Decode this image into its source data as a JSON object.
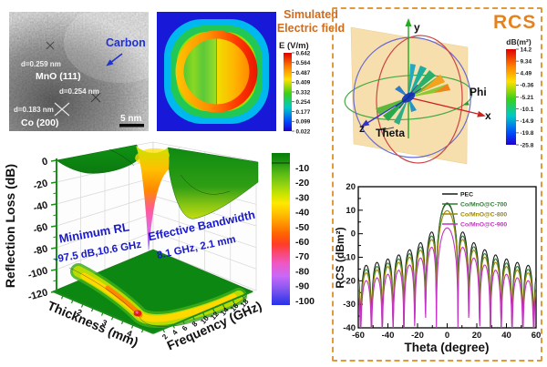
{
  "tem": {
    "carbon_label": "Carbon",
    "d_spacing_1": "d=0.259 nm",
    "phase_1": "MnO (111)",
    "d_spacing_2": "d=0.254 nm",
    "d_spacing_3": "d=0.183 nm",
    "phase_2": "Co (200)",
    "scalebar_label": "5 nm"
  },
  "efield": {
    "title_line1": "Simulated",
    "title_line2": "Electric field",
    "unit": "E (V/m)",
    "colorbar_ticks": [
      "0.642",
      "0.564",
      "0.487",
      "0.409",
      "0.332",
      "0.254",
      "0.177",
      "0.099",
      "0.022"
    ]
  },
  "rcs3d": {
    "title": "RCS",
    "unit": "dB(m²)",
    "colorbar_ticks": [
      "14.2",
      "9.34",
      "4.49",
      "-0.36",
      "-5.21",
      "-10.1",
      "-14.9",
      "-19.8",
      "-25.8"
    ],
    "axis_x": "x",
    "axis_y": "y",
    "axis_z": "z",
    "theta_label": "Theta",
    "phi_label": "Phi"
  },
  "chart_data": [
    {
      "type": "surface3d",
      "zlabel": "Reflection Loss (dB)",
      "xlabel": "Thickness (mm)",
      "ylabel": "Frequency (GHz)",
      "z_ticks": [
        "0",
        "-20",
        "-40",
        "-60",
        "-80",
        "-100",
        "-120"
      ],
      "x_ticks": [
        "2",
        "3",
        "4"
      ],
      "y_ticks": [
        "2",
        "4",
        "6",
        "8",
        "10",
        "12",
        "14",
        "16",
        "18"
      ],
      "z_range": [
        -120,
        0
      ],
      "x_range": [
        1,
        5
      ],
      "y_range": [
        2,
        18
      ],
      "colorbar_ticks": [
        "-10",
        "-20",
        "-30",
        "-40",
        "-50",
        "-60",
        "-70",
        "-80",
        "-90",
        "-100"
      ],
      "min_RL_dB": -97.5,
      "min_RL_frequency_GHz": 10.6,
      "effective_bandwidth_GHz": 8.1,
      "effective_bandwidth_thickness_mm": 2.1,
      "annotations": {
        "min_rl_1": "Minimum RL",
        "min_rl_2": "-97.5 dB,10.6 GHz",
        "bw_1": "Effective Bandwidth",
        "bw_2": "8.1 GHz, 2.1 mm"
      }
    },
    {
      "type": "line",
      "xlabel": "Theta (degree)",
      "ylabel": "RCS (dBm²)",
      "xlim": [
        -60,
        60
      ],
      "ylim": [
        -40,
        20
      ],
      "x_ticks": [
        "-60",
        "-40",
        "-20",
        "0",
        "20",
        "40",
        "60"
      ],
      "y_ticks": [
        "20",
        "10",
        "0",
        "-10",
        "-20",
        "-30",
        "-40"
      ],
      "legend_position": "top-right",
      "null_spacing_deg": 7.3,
      "series": [
        {
          "name": "PEC",
          "color": "#1a1a1a",
          "peak_dB": 13.0,
          "sidelobe_env_dB": 14.0
        },
        {
          "name": "Co/MnO@C-700",
          "color": "#2e7d32",
          "peak_dB": 12.6,
          "sidelobe_env_dB": 12.3
        },
        {
          "name": "Co/MnO@C-800",
          "color": "#9a8700",
          "peak_dB": 9.8,
          "sidelobe_env_dB": 10.8
        },
        {
          "name": "Co/MnO@C-900",
          "color": "#c431c4",
          "peak_dB": 2.5,
          "sidelobe_env_dB": 7.5
        }
      ]
    }
  ]
}
